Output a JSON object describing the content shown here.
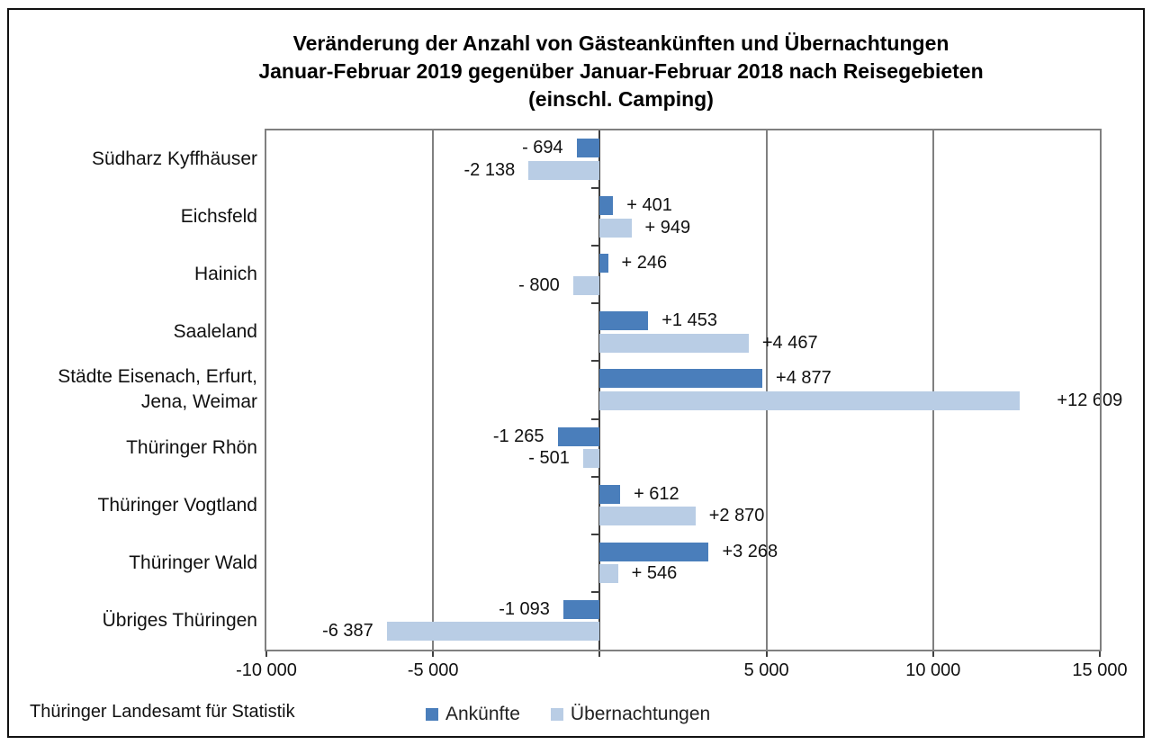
{
  "title": {
    "line1": "Veränderung der Anzahl von Gästeankünften und Übernachtungen",
    "line2": "Januar-Februar 2019 gegenüber Januar-Februar 2018 nach Reisegebieten",
    "line3": "(einschl. Camping)"
  },
  "source": "Thüringer Landesamt für Statistik",
  "colors": {
    "ankuenfte": "#4a7ebb",
    "uebernachtungen": "#b9cde5",
    "grid": "#808080",
    "axis": "#3f3f3f",
    "text": "#111111"
  },
  "legend": {
    "items": [
      {
        "label": "Ankünfte",
        "color": "#4a7ebb"
      },
      {
        "label": "Übernachtungen",
        "color": "#b9cde5"
      }
    ]
  },
  "chart_data": {
    "type": "bar",
    "orientation": "horizontal",
    "title": "Veränderung der Anzahl von Gästeankünften und Übernachtungen Januar-Februar 2019 gegenüber Januar-Februar 2018 nach Reisegebieten (einschl. Camping)",
    "categories": [
      "Südharz Kyffhäuser",
      "Eichsfeld",
      "Hainich",
      "Saaleland",
      "Städte Eisenach, Erfurt, Jena, Weimar",
      "Thüringer Rhön",
      "Thüringer Vogtland",
      "Thüringer Wald",
      "Übriges Thüringen"
    ],
    "series": [
      {
        "name": "Ankünfte",
        "color": "#4a7ebb",
        "values": [
          -694,
          401,
          246,
          1453,
          4877,
          -1265,
          612,
          3268,
          -1093
        ],
        "labels": [
          "- 694",
          "+ 401",
          "+ 246",
          "+1 453",
          "+4 877",
          "-1 265",
          "+ 612",
          "+3 268",
          "-1 093"
        ]
      },
      {
        "name": "Übernachtungen",
        "color": "#b9cde5",
        "values": [
          -2138,
          949,
          -800,
          4467,
          12609,
          -501,
          2870,
          546,
          -6387
        ],
        "labels": [
          "-2 138",
          "+ 949",
          "- 800",
          "+4 467",
          "+12 609",
          "- 501",
          "+2 870",
          "+ 546",
          "-6 387"
        ]
      }
    ],
    "xlim": [
      -10000,
      15000
    ],
    "x_ticks": [
      {
        "value": -10000,
        "label": "-10 000"
      },
      {
        "value": -5000,
        "label": "-5 000"
      },
      {
        "value": 0,
        "label": ""
      },
      {
        "value": 5000,
        "label": "5 000"
      },
      {
        "value": 10000,
        "label": "10 000"
      },
      {
        "value": 15000,
        "label": "15 000"
      }
    ],
    "gridlines": [
      -5000,
      5000,
      10000
    ],
    "grid": true,
    "legend_position": "bottom",
    "value_labels": "outside-end"
  }
}
